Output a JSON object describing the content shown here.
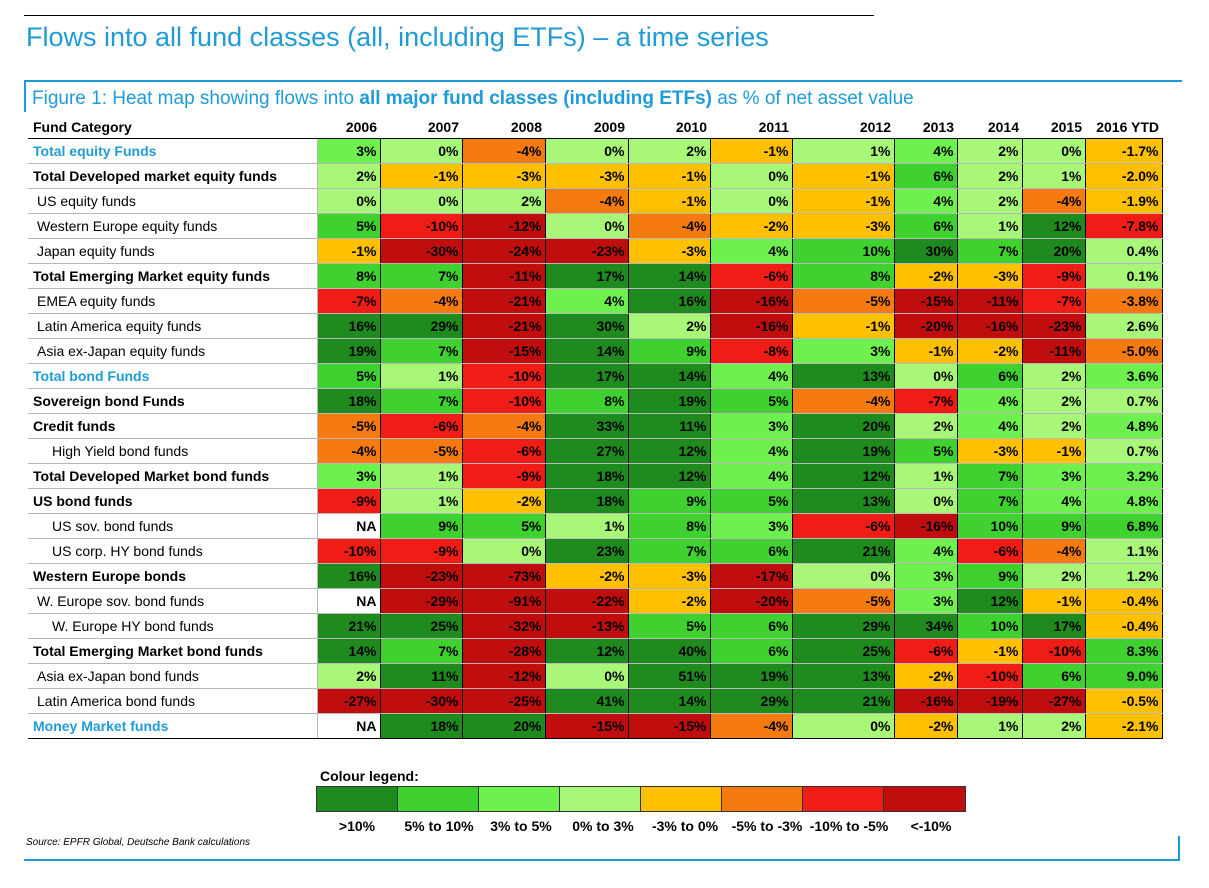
{
  "title": "Flows into all fund classes (all, including ETFs) – a time series",
  "figure_caption": {
    "prefix": "Figure 1: Heat map showing flows into ",
    "bold": "all major fund classes (including ETFs)",
    "suffix": " as % of net asset value"
  },
  "source": "Source: EPFR Global, Deutsche Bank calculations",
  "colors": {
    "gt10": "#1f8b1f",
    "5to10": "#3ed12f",
    "3to5": "#6ef04e",
    "0to3": "#a9f779",
    "m3to0": "#ffc000",
    "m5tom3": "#f57a10",
    "m10tom5": "#f01c16",
    "ltm10": "#c00e0e",
    "title_blue": "#1f9bd7"
  },
  "chart_data": {
    "type": "heatmap",
    "row_header": "Fund Category",
    "columns": [
      "2006",
      "2007",
      "2008",
      "2009",
      "2010",
      "2011",
      "2012",
      "2013",
      "2014",
      "2015",
      "2016 YTD"
    ],
    "rows": [
      {
        "label": "Total equity Funds",
        "style": "blue",
        "values": [
          "3%",
          "0%",
          "-4%",
          "0%",
          "2%",
          "-1%",
          "1%",
          "4%",
          "2%",
          "0%",
          "-1.7%"
        ]
      },
      {
        "label": "Total Developed market equity funds",
        "style": "bold",
        "values": [
          "2%",
          "-1%",
          "-3%",
          "-3%",
          "-1%",
          "0%",
          "-1%",
          "6%",
          "2%",
          "1%",
          "-2.0%"
        ]
      },
      {
        "label": "US equity funds",
        "style": "l0",
        "values": [
          "0%",
          "0%",
          "2%",
          "-4%",
          "-1%",
          "0%",
          "-1%",
          "4%",
          "2%",
          "-4%",
          "-1.9%"
        ]
      },
      {
        "label": "Western Europe equity funds",
        "style": "l0",
        "values": [
          "5%",
          "-10%",
          "-12%",
          "0%",
          "-4%",
          "-2%",
          "-3%",
          "6%",
          "1%",
          "12%",
          "-7.8%"
        ]
      },
      {
        "label": "Japan equity funds",
        "style": "l0",
        "values": [
          "-1%",
          "-30%",
          "-24%",
          "-23%",
          "-3%",
          "4%",
          "10%",
          "30%",
          "7%",
          "20%",
          "0.4%"
        ]
      },
      {
        "label": "Total Emerging Market equity funds",
        "style": "bold",
        "values": [
          "8%",
          "7%",
          "-11%",
          "17%",
          "14%",
          "-6%",
          "8%",
          "-2%",
          "-3%",
          "-9%",
          "0.1%"
        ]
      },
      {
        "label": "EMEA equity funds",
        "style": "l0",
        "values": [
          "-7%",
          "-4%",
          "-21%",
          "4%",
          "16%",
          "-16%",
          "-5%",
          "-15%",
          "-11%",
          "-7%",
          "-3.8%"
        ]
      },
      {
        "label": "Latin America equity funds",
        "style": "l0",
        "values": [
          "16%",
          "29%",
          "-21%",
          "30%",
          "2%",
          "-16%",
          "-1%",
          "-20%",
          "-16%",
          "-23%",
          "2.6%"
        ]
      },
      {
        "label": "Asia ex-Japan equity funds",
        "style": "l0",
        "values": [
          "19%",
          "7%",
          "-15%",
          "14%",
          "9%",
          "-8%",
          "3%",
          "-1%",
          "-2%",
          "-11%",
          "-5.0%"
        ]
      },
      {
        "label": "Total bond Funds",
        "style": "blue",
        "values": [
          "5%",
          "1%",
          "-10%",
          "17%",
          "14%",
          "4%",
          "13%",
          "0%",
          "6%",
          "2%",
          "3.6%"
        ]
      },
      {
        "label": "Sovereign bond Funds",
        "style": "bold",
        "values": [
          "18%",
          "7%",
          "-10%",
          "8%",
          "19%",
          "5%",
          "-4%",
          "-7%",
          "4%",
          "2%",
          "0.7%"
        ]
      },
      {
        "label": "Credit funds",
        "style": "bold",
        "values": [
          "-5%",
          "-6%",
          "-4%",
          "33%",
          "11%",
          "3%",
          "20%",
          "2%",
          "4%",
          "2%",
          "4.8%"
        ]
      },
      {
        "label": "High Yield bond funds",
        "style": "l1",
        "values": [
          "-4%",
          "-5%",
          "-6%",
          "27%",
          "12%",
          "4%",
          "19%",
          "5%",
          "-3%",
          "-1%",
          "0.7%"
        ]
      },
      {
        "label": "Total Developed Market bond funds",
        "style": "bold",
        "values": [
          "3%",
          "1%",
          "-9%",
          "18%",
          "12%",
          "4%",
          "12%",
          "1%",
          "7%",
          "3%",
          "3.2%"
        ]
      },
      {
        "label": "US bond funds",
        "style": "bold",
        "values": [
          "-9%",
          "1%",
          "-2%",
          "18%",
          "9%",
          "5%",
          "13%",
          "0%",
          "7%",
          "4%",
          "4.8%"
        ]
      },
      {
        "label": "US sov. bond funds",
        "style": "l1",
        "values": [
          "NA",
          "9%",
          "5%",
          "1%",
          "8%",
          "3%",
          "-6%",
          "-16%",
          "10%",
          "9%",
          "6.8%"
        ]
      },
      {
        "label": "US corp. HY bond funds",
        "style": "l1",
        "values": [
          "-10%",
          "-9%",
          "0%",
          "23%",
          "7%",
          "6%",
          "21%",
          "4%",
          "-6%",
          "-4%",
          "1.1%"
        ]
      },
      {
        "label": "Western Europe bonds",
        "style": "bold",
        "values": [
          "16%",
          "-23%",
          "-73%",
          "-2%",
          "-3%",
          "-17%",
          "0%",
          "3%",
          "9%",
          "2%",
          "1.2%"
        ]
      },
      {
        "label": "W. Europe sov. bond funds",
        "style": "l0",
        "values": [
          "NA",
          "-29%",
          "-91%",
          "-22%",
          "-2%",
          "-20%",
          "-5%",
          "3%",
          "12%",
          "-1%",
          "-0.4%"
        ]
      },
      {
        "label": "W. Europe HY bond funds",
        "style": "l1",
        "values": [
          "21%",
          "25%",
          "-32%",
          "-13%",
          "5%",
          "6%",
          "29%",
          "34%",
          "10%",
          "17%",
          "-0.4%"
        ]
      },
      {
        "label": "Total Emerging Market bond funds",
        "style": "bold",
        "values": [
          "14%",
          "7%",
          "-28%",
          "12%",
          "40%",
          "6%",
          "25%",
          "-6%",
          "-1%",
          "-10%",
          "8.3%"
        ]
      },
      {
        "label": "Asia ex-Japan bond funds",
        "style": "l0",
        "values": [
          "2%",
          "11%",
          "-12%",
          "0%",
          "51%",
          "19%",
          "13%",
          "-2%",
          "-10%",
          "6%",
          "9.0%"
        ]
      },
      {
        "label": "Latin America bond funds",
        "style": "l0",
        "values": [
          "-27%",
          "-30%",
          "-25%",
          "41%",
          "14%",
          "29%",
          "21%",
          "-16%",
          "-19%",
          "-27%",
          "-0.5%"
        ]
      },
      {
        "label": "Money Market funds",
        "style": "blue",
        "values": [
          "NA",
          "18%",
          "20%",
          "-15%",
          "-15%",
          "-4%",
          "0%",
          "-2%",
          "1%",
          "2%",
          "-2.1%"
        ]
      }
    ],
    "legend": {
      "title": "Colour legend:",
      "items": [
        {
          "label": ">10%",
          "color_key": "gt10"
        },
        {
          "label": "5% to 10%",
          "color_key": "5to10"
        },
        {
          "label": "3% to 5%",
          "color_key": "3to5"
        },
        {
          "label": "0% to 3%",
          "color_key": "0to3"
        },
        {
          "label": "-3% to 0%",
          "color_key": "m3to0"
        },
        {
          "label": "-5% to -3%",
          "color_key": "m5tom3"
        },
        {
          "label": "-10% to -5%",
          "color_key": "m10tom5"
        },
        {
          "label": "<-10%",
          "color_key": "ltm10"
        }
      ]
    }
  }
}
